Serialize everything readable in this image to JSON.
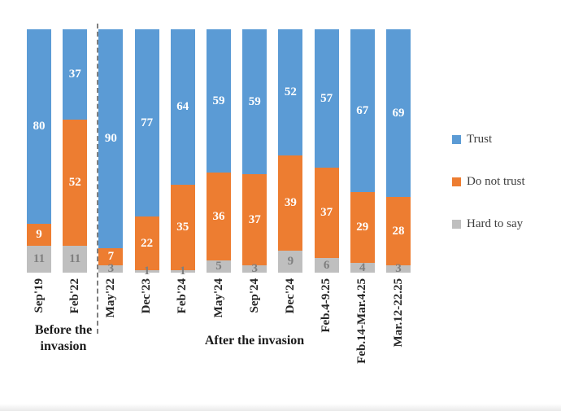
{
  "chart_data": {
    "type": "bar",
    "subtype": "100-percent-stacked-column",
    "title": "",
    "xlabel": "",
    "ylabel": "",
    "grid": false,
    "legend_position": "right",
    "value_labels_shown": true,
    "categories": [
      "Sep'19",
      "Feb'22",
      "May'22",
      "Dec'23",
      "Feb'24",
      "May'24",
      "Sep'24",
      "Dec'24",
      "Feb.4-9.25",
      "Feb.14-Mar.4.25",
      "Mar.12-22.25"
    ],
    "series": [
      {
        "name": "Trust",
        "color": "#5B9BD5",
        "values": [
          80,
          37,
          90,
          77,
          64,
          59,
          59,
          52,
          57,
          67,
          69
        ]
      },
      {
        "name": "Do not trust",
        "color": "#ED7D31",
        "values": [
          9,
          52,
          7,
          22,
          35,
          36,
          37,
          39,
          37,
          29,
          28
        ]
      },
      {
        "name": "Hard to say",
        "color": "#BFBFBF",
        "values": [
          11,
          11,
          3,
          1,
          1,
          5,
          3,
          9,
          6,
          4,
          3
        ]
      }
    ],
    "group_labels": [
      {
        "text": "Before the invasion",
        "span": [
          0,
          1
        ]
      },
      {
        "text": "After the invasion",
        "span": [
          2,
          10
        ]
      }
    ],
    "divider_after_index": 1
  },
  "legend": {
    "items": [
      {
        "label": "Trust",
        "color": "#5B9BD5"
      },
      {
        "label": "Do not trust",
        "color": "#ED7D31"
      },
      {
        "label": "Hard to say",
        "color": "#BFBFBF"
      }
    ]
  },
  "colors": {
    "trust": "#5B9BD5",
    "do_not_trust": "#ED7D31",
    "hard_to_say": "#BFBFBF",
    "value_label_light": "#FFFFFF",
    "value_label_gray": "#7F7F7F",
    "tick_label": "#262626",
    "divider": "#7F7F7F"
  }
}
